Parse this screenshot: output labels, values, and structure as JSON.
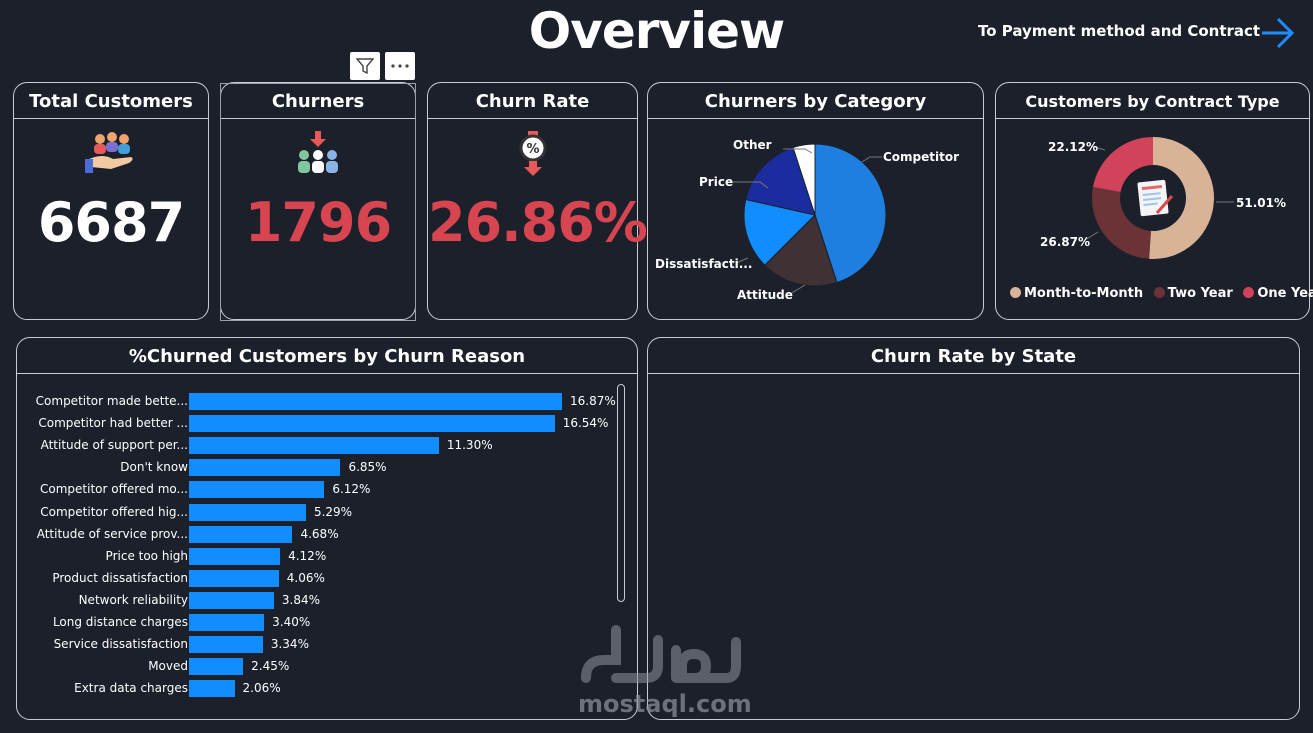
{
  "header": {
    "title": "Overview",
    "nav_link": "To Payment method and Contract"
  },
  "kpis": {
    "total_customers": {
      "title": "Total Customers",
      "value": "6687",
      "icon": "people-hand-icon",
      "color": "#ffffff"
    },
    "churners": {
      "title": "Churners",
      "value": "1796",
      "icon": "people-down-arrow-icon",
      "color": "#d64550"
    },
    "churn_rate": {
      "title": "Churn Rate",
      "value": "26.86%",
      "icon": "percent-down-icon",
      "color": "#d64550"
    }
  },
  "churners_by_category": {
    "title": "Churners by Category",
    "labels": {
      "competitor": "Competitor",
      "attitude": "Attitude",
      "dissatisfaction": "Dissatisfacti...",
      "price": "Price",
      "other": "Other"
    }
  },
  "contract_type": {
    "title": "Customers by Contract Type",
    "labels": {
      "month": "51.01%",
      "two": "26.87%",
      "one": "22.12%"
    },
    "legend": {
      "month": "Month-to-Month",
      "two": "Two Year",
      "one": "One Year"
    },
    "colors": {
      "month": "#d9b397",
      "two": "#6b3336",
      "one": "#d0435b"
    }
  },
  "churn_reason": {
    "title": "%Churned Customers by Churn Reason",
    "rows": [
      {
        "label": "Competitor made bette...",
        "value": "16.87%"
      },
      {
        "label": "Competitor had better ...",
        "value": "16.54%"
      },
      {
        "label": "Attitude of support per...",
        "value": "11.30%"
      },
      {
        "label": "Don't know",
        "value": "6.85%"
      },
      {
        "label": "Competitor offered mo...",
        "value": "6.12%"
      },
      {
        "label": "Competitor offered hig...",
        "value": "5.29%"
      },
      {
        "label": "Attitude of service prov...",
        "value": "4.68%"
      },
      {
        "label": "Price too high",
        "value": "4.12%"
      },
      {
        "label": "Product dissatisfaction",
        "value": "4.06%"
      },
      {
        "label": "Network reliability",
        "value": "3.84%"
      },
      {
        "label": "Long distance charges",
        "value": "3.40%"
      },
      {
        "label": "Service dissatisfaction",
        "value": "3.34%"
      },
      {
        "label": "Moved",
        "value": "2.45%"
      },
      {
        "label": "Extra data charges",
        "value": "2.06%"
      }
    ]
  },
  "churn_by_state": {
    "title": "Churn Rate by State"
  },
  "chart_data": [
    {
      "type": "pie",
      "title": "Churners by Category",
      "categories": [
        "Competitor",
        "Attitude",
        "Dissatisfaction",
        "Price",
        "Other"
      ],
      "values": [
        45.0,
        17.5,
        16.0,
        16.5,
        5.0
      ]
    },
    {
      "type": "pie",
      "title": "Customers by Contract Type",
      "categories": [
        "Month-to-Month",
        "Two Year",
        "One Year"
      ],
      "values": [
        51.01,
        26.87,
        22.12
      ]
    },
    {
      "type": "bar",
      "title": "%Churned Customers by Churn Reason",
      "categories": [
        "Competitor made bette...",
        "Competitor had better ...",
        "Attitude of support per...",
        "Don't know",
        "Competitor offered mo...",
        "Competitor offered hig...",
        "Attitude of service prov...",
        "Price too high",
        "Product dissatisfaction",
        "Network reliability",
        "Long distance charges",
        "Service dissatisfaction",
        "Moved",
        "Extra data charges"
      ],
      "values": [
        16.87,
        16.54,
        11.3,
        6.85,
        6.12,
        5.29,
        4.68,
        4.12,
        4.06,
        3.84,
        3.4,
        3.34,
        2.45,
        2.06
      ]
    }
  ],
  "watermark": {
    "text": "mostaql.com"
  }
}
